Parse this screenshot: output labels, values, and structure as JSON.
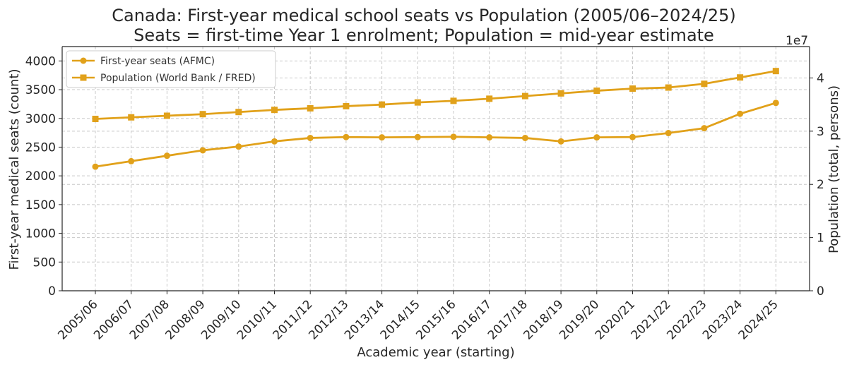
{
  "chart_data": {
    "type": "line",
    "title_line1": "Canada: First-year medical school seats vs Population (2005/06–2024/25)",
    "title_line2": "Seats = first-time Year 1 enrolment; Population = mid-year estimate",
    "xlabel": "Academic year (starting)",
    "ylabel_left": "First-year medical seats (count)",
    "ylabel_right": "Population (total, persons)",
    "right_axis_multiplier": "1e7",
    "categories": [
      "2005/06",
      "2006/07",
      "2007/08",
      "2008/09",
      "2009/10",
      "2010/11",
      "2011/12",
      "2012/13",
      "2013/14",
      "2014/15",
      "2015/16",
      "2016/17",
      "2017/18",
      "2018/19",
      "2019/20",
      "2020/21",
      "2021/22",
      "2022/23",
      "2023/24",
      "2024/25"
    ],
    "ylim_left": [
      0,
      4250
    ],
    "yticks_left": [
      0,
      500,
      1000,
      1500,
      2000,
      2500,
      3000,
      3500,
      4000
    ],
    "ylim_right": [
      0,
      45900000
    ],
    "yticks_right": [
      0,
      10000000,
      20000000,
      30000000,
      40000000
    ],
    "yticks_right_labels": [
      "0",
      "1",
      "2",
      "3",
      "4"
    ],
    "grid": true,
    "legend_position": "top-left",
    "color": "#E1A11A",
    "series": [
      {
        "name": "First-year seats (AFMC)",
        "axis": "left",
        "marker": "circle",
        "values": [
          2160,
          2255,
          2350,
          2445,
          2510,
          2600,
          2660,
          2675,
          2670,
          2675,
          2680,
          2670,
          2660,
          2600,
          2670,
          2675,
          2745,
          2830,
          3080,
          3270
        ]
      },
      {
        "name": "Population (World Bank / FRED)",
        "axis": "right",
        "marker": "square",
        "values": [
          32300000,
          32600000,
          32900000,
          33200000,
          33600000,
          34000000,
          34300000,
          34700000,
          35000000,
          35400000,
          35700000,
          36100000,
          36600000,
          37100000,
          37600000,
          38000000,
          38200000,
          38900000,
          40100000,
          41300000
        ]
      }
    ]
  }
}
